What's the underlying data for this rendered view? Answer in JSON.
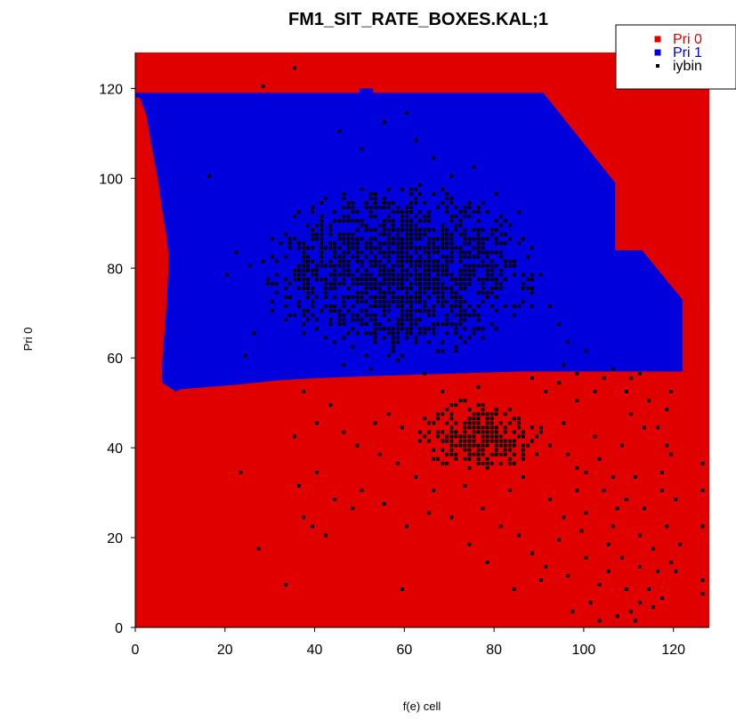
{
  "chart_data": {
    "type": "heatmap",
    "title": "FM1_SIT_RATE_BOXES.KAL;1",
    "xlabel": "f(e) cell",
    "ylabel": "Pri 0",
    "xlim": [
      0,
      128
    ],
    "ylim": [
      0,
      128
    ],
    "xticks": [
      0,
      20,
      40,
      60,
      80,
      100,
      120
    ],
    "yticks": [
      0,
      20,
      40,
      60,
      80,
      100,
      120
    ],
    "grid": false,
    "legend": {
      "placement": "top-right",
      "entries": [
        {
          "label": "Pri 0",
          "color": "#e00000"
        },
        {
          "label": "Pri 1",
          "color": "#0000dd"
        },
        {
          "label": "iybin",
          "color": "#000000"
        }
      ]
    },
    "regions": [
      {
        "name": "Pri 0",
        "color": "#e00000",
        "x_range": [
          0,
          128
        ],
        "y_range": [
          0,
          128
        ]
      },
      {
        "name": "Pri 1",
        "color": "#0000dd",
        "boundary": [
          [
            0,
            119
          ],
          [
            50,
            119
          ],
          [
            50,
            120
          ],
          [
            53,
            120
          ],
          [
            53,
            119
          ],
          [
            91,
            119
          ],
          [
            107,
            99
          ],
          [
            107,
            84
          ],
          [
            113,
            84
          ],
          [
            122,
            73
          ],
          [
            122,
            57
          ],
          [
            86,
            57
          ],
          [
            70,
            56.5
          ],
          [
            54,
            56
          ],
          [
            40,
            55.5
          ],
          [
            32,
            55
          ],
          [
            22,
            54
          ],
          [
            10,
            53
          ],
          [
            9,
            52.5
          ],
          [
            6,
            54.5
          ],
          [
            6,
            59
          ],
          [
            7,
            72
          ],
          [
            7.5,
            82
          ],
          [
            7,
            87
          ],
          [
            6,
            93
          ],
          [
            5,
            100
          ],
          [
            3.5,
            108
          ],
          [
            2.5,
            114
          ],
          [
            1,
            118
          ],
          [
            0,
            118
          ]
        ]
      }
    ],
    "series": [
      {
        "name": "iybin",
        "type": "scatter",
        "color": "#000000",
        "dense_clusters": [
          {
            "x_range": [
              28,
              90
            ],
            "y_range": [
              60,
              98
            ]
          },
          {
            "x_range": [
              62,
              90
            ],
            "y_range": [
              34,
              50
            ]
          }
        ],
        "points": [
          [
            28,
            120
          ],
          [
            35,
            124
          ],
          [
            16,
            100
          ],
          [
            23,
            34
          ],
          [
            27,
            17
          ],
          [
            33,
            9
          ],
          [
            40,
            34
          ],
          [
            36,
            31
          ],
          [
            37,
            24
          ],
          [
            39,
            22
          ],
          [
            42,
            20
          ],
          [
            44,
            28
          ],
          [
            48,
            26
          ],
          [
            50,
            30
          ],
          [
            55,
            27
          ],
          [
            59,
            8
          ],
          [
            60,
            22
          ],
          [
            65,
            25
          ],
          [
            70,
            24
          ],
          [
            74,
            18
          ],
          [
            78,
            14
          ],
          [
            84,
            8
          ],
          [
            90,
            10
          ],
          [
            96,
            11
          ],
          [
            94,
            19
          ],
          [
            100,
            15
          ],
          [
            103,
            9
          ],
          [
            107,
            2
          ],
          [
            110,
            3
          ],
          [
            112,
            5
          ],
          [
            115,
            4
          ],
          [
            117,
            6
          ],
          [
            120,
            12
          ],
          [
            121,
            18
          ],
          [
            126,
            36
          ],
          [
            126,
            30
          ],
          [
            126,
            22
          ],
          [
            126,
            10
          ],
          [
            126,
            7
          ],
          [
            119,
            14
          ],
          [
            118,
            22
          ],
          [
            117,
            30
          ],
          [
            118,
            40
          ],
          [
            118,
            48
          ],
          [
            119,
            52
          ],
          [
            117,
            34
          ],
          [
            113,
            44
          ],
          [
            112,
            20
          ],
          [
            108,
            15
          ],
          [
            105,
            12
          ],
          [
            100,
            25
          ],
          [
            98,
            35
          ],
          [
            95,
            45
          ],
          [
            91,
            52
          ],
          [
            88,
            55
          ],
          [
            102,
            42
          ],
          [
            104,
            30
          ],
          [
            106,
            22
          ],
          [
            109,
            28
          ],
          [
            111,
            33
          ],
          [
            114,
            8
          ],
          [
            116,
            12
          ],
          [
            101,
            5
          ],
          [
            97,
            3
          ],
          [
            30,
            70
          ],
          [
            25,
            80
          ],
          [
            22,
            83
          ],
          [
            24,
            60
          ],
          [
            26,
            65
          ],
          [
            20,
            78
          ],
          [
            45,
            110
          ],
          [
            50,
            106
          ],
          [
            55,
            112
          ],
          [
            60,
            114
          ],
          [
            62,
            108
          ],
          [
            66,
            104
          ],
          [
            70,
            100
          ],
          [
            75,
            102
          ],
          [
            80,
            96
          ],
          [
            85,
            92
          ],
          [
            46,
            58
          ],
          [
            52,
            57
          ],
          [
            58,
            59
          ],
          [
            64,
            56
          ],
          [
            68,
            52
          ],
          [
            72,
            50
          ],
          [
            76,
            53
          ],
          [
            80,
            48
          ],
          [
            84,
            46
          ],
          [
            88,
            44
          ],
          [
            92,
            40
          ],
          [
            96,
            38
          ],
          [
            98,
            30
          ],
          [
            100,
            34
          ],
          [
            103,
            37
          ],
          [
            106,
            33
          ],
          [
            92,
            28
          ],
          [
            95,
            24
          ],
          [
            99,
            21
          ],
          [
            108,
            40
          ],
          [
            110,
            47
          ],
          [
            114,
            50
          ],
          [
            110,
            55
          ],
          [
            106,
            57
          ],
          [
            102,
            52
          ],
          [
            98,
            50
          ],
          [
            94,
            54
          ],
          [
            89,
            38
          ],
          [
            86,
            33
          ],
          [
            83,
            30
          ],
          [
            79,
            36
          ],
          [
            75,
            40
          ],
          [
            71,
            43
          ],
          [
            67,
            46
          ],
          [
            63,
            41
          ],
          [
            59,
            44
          ],
          [
            56,
            47
          ],
          [
            53,
            45
          ],
          [
            49,
            40
          ],
          [
            46,
            43
          ],
          [
            43,
            49
          ],
          [
            40,
            45
          ],
          [
            37,
            52
          ],
          [
            35,
            42
          ],
          [
            54,
            38
          ],
          [
            58,
            36
          ],
          [
            62,
            33
          ],
          [
            66,
            30
          ],
          [
            69,
            36
          ],
          [
            73,
            31
          ],
          [
            77,
            26
          ],
          [
            81,
            22
          ],
          [
            85,
            20
          ],
          [
            88,
            16
          ],
          [
            91,
            13
          ],
          [
            105,
            18
          ],
          [
            107,
            26
          ],
          [
            112,
            13
          ],
          [
            113,
            26
          ],
          [
            116,
            44
          ],
          [
            119,
            38
          ],
          [
            120,
            28
          ],
          [
            115,
            17
          ],
          [
            109,
            8
          ],
          [
            111,
            1
          ],
          [
            103,
            1
          ],
          [
            100,
            61
          ],
          [
            96,
            63
          ],
          [
            94,
            67
          ],
          [
            92,
            71
          ],
          [
            95,
            58
          ],
          [
            98,
            56
          ],
          [
            104,
            55
          ],
          [
            109,
            52
          ],
          [
            112,
            56
          ]
        ]
      }
    ]
  }
}
